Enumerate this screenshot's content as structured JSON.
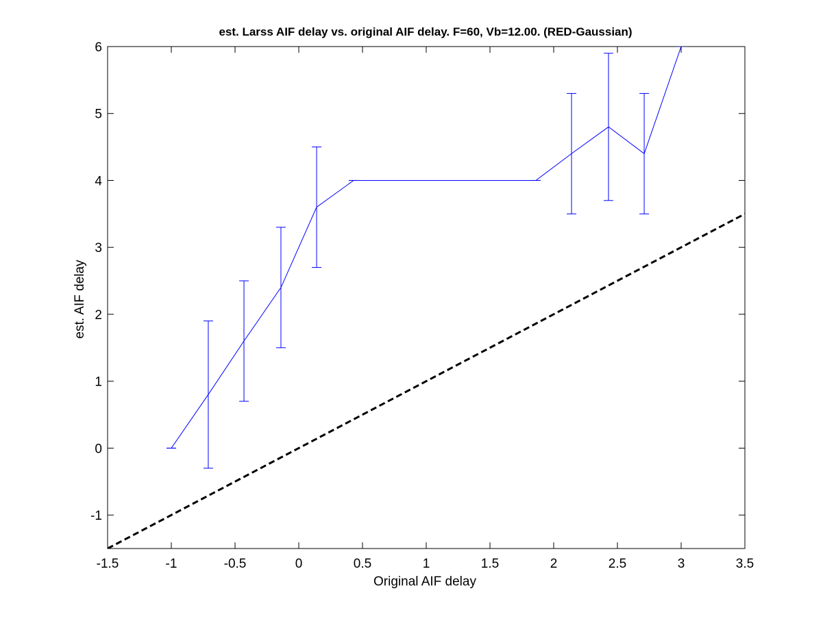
{
  "chart_data": {
    "type": "line",
    "title": "est. Larss AIF delay vs. original AIF delay. F=60, Vb=12.00. (RED-Gaussian)",
    "xlabel": "Original AIF delay",
    "ylabel": "est. AIF delay",
    "xlim": [
      -1.5,
      3.5
    ],
    "ylim": [
      -1.5,
      6
    ],
    "xticks": [
      -1.5,
      -1,
      -0.5,
      0,
      0.5,
      1,
      1.5,
      2,
      2.5,
      3,
      3.5
    ],
    "xtick_labels": [
      "-1.5",
      "-1",
      "-0.5",
      "0",
      "0.5",
      "1",
      "1.5",
      "2",
      "2.5",
      "3",
      "3.5"
    ],
    "yticks": [
      -1,
      0,
      1,
      2,
      3,
      4,
      5,
      6
    ],
    "ytick_labels": [
      "-1",
      "0",
      "1",
      "2",
      "3",
      "4",
      "5",
      "6"
    ],
    "grid": false,
    "series": [
      {
        "style": "solid",
        "color": "#0000ff",
        "x": [
          -1.0,
          -0.71,
          -0.43,
          -0.14,
          0.14,
          0.43,
          1.86,
          2.14,
          2.43,
          2.71,
          3.0
        ],
        "y": [
          0.0,
          0.8,
          1.6,
          2.4,
          3.6,
          4.0,
          4.0,
          4.4,
          4.8,
          4.4,
          6.0
        ],
        "err_low": [
          0.0,
          1.1,
          0.9,
          0.9,
          0.9,
          0.0,
          0.0,
          0.9,
          1.1,
          0.9,
          0.0
        ],
        "err_high": [
          0.0,
          1.1,
          0.9,
          0.9,
          0.9,
          0.0,
          0.0,
          0.9,
          1.1,
          0.9,
          0.0
        ]
      },
      {
        "style": "dashed",
        "color": "#000000",
        "x": [
          -1.5,
          3.5
        ],
        "y": [
          -1.5,
          3.5
        ]
      }
    ]
  }
}
